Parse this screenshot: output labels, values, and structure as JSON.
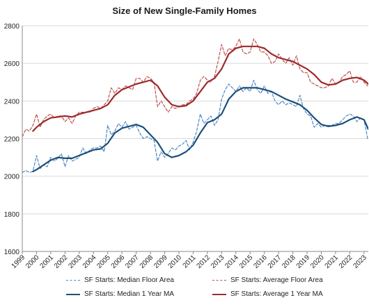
{
  "chart_data": {
    "type": "line",
    "title": "Size of New Single-Family Homes",
    "xlabel": "",
    "ylabel": "",
    "xlim": [
      1999,
      2023.3
    ],
    "ylim": [
      1600,
      2800
    ],
    "grid": "horizontal",
    "legend_position": "bottom",
    "y_ticks": [
      1600,
      1800,
      2000,
      2200,
      2400,
      2600,
      2800
    ],
    "y_tick_labels": [
      "1600",
      "1800",
      "2000",
      "2200",
      "2400",
      "2600",
      "2800"
    ],
    "x_ticks": [
      1999,
      2000,
      2001,
      2002,
      2003,
      2004,
      2005,
      2006,
      2007,
      2008,
      2009,
      2010,
      2011,
      2012,
      2013,
      2014,
      2015,
      2016,
      2017,
      2018,
      2019,
      2020,
      2021,
      2022,
      2023
    ],
    "x_tick_labels": [
      "1999",
      "2000",
      "2001",
      "2002",
      "2003",
      "2004",
      "2005",
      "2006",
      "2007",
      "2008",
      "2009",
      "2010",
      "2011",
      "2012",
      "2013",
      "2014",
      "2015",
      "2016",
      "2017",
      "2018",
      "2019",
      "2020",
      "2021",
      "2022",
      "2023"
    ],
    "series": [
      {
        "name": "SF Starts: Median Floor Area",
        "color": "#4a86c8",
        "style": "dashed",
        "x": [
          1999.0,
          1999.25,
          1999.5,
          1999.75,
          2000.0,
          2000.25,
          2000.5,
          2000.75,
          2001.0,
          2001.25,
          2001.5,
          2001.75,
          2002.0,
          2002.25,
          2002.5,
          2002.75,
          2003.0,
          2003.25,
          2003.5,
          2003.75,
          2004.0,
          2004.25,
          2004.5,
          2004.75,
          2005.0,
          2005.25,
          2005.5,
          2005.75,
          2006.0,
          2006.25,
          2006.5,
          2006.75,
          2007.0,
          2007.25,
          2007.5,
          2007.75,
          2008.0,
          2008.25,
          2008.5,
          2008.75,
          2009.0,
          2009.25,
          2009.5,
          2009.75,
          2010.0,
          2010.25,
          2010.5,
          2010.75,
          2011.0,
          2011.25,
          2011.5,
          2011.75,
          2012.0,
          2012.25,
          2012.5,
          2012.75,
          2013.0,
          2013.25,
          2013.5,
          2013.75,
          2014.0,
          2014.25,
          2014.5,
          2014.75,
          2015.0,
          2015.25,
          2015.5,
          2015.75,
          2016.0,
          2016.25,
          2016.5,
          2016.75,
          2017.0,
          2017.25,
          2017.5,
          2017.75,
          2018.0,
          2018.25,
          2018.5,
          2018.75,
          2019.0,
          2019.25,
          2019.5,
          2019.75,
          2020.0,
          2020.25,
          2020.5,
          2020.75,
          2021.0,
          2021.25,
          2021.5,
          2021.75,
          2022.0,
          2022.25,
          2022.5,
          2022.75,
          2023.0,
          2023.25
        ],
        "values": [
          2020,
          2030,
          2020,
          2025,
          2110,
          2040,
          2060,
          2050,
          2100,
          2080,
          2095,
          2120,
          2050,
          2110,
          2080,
          2090,
          2100,
          2150,
          2120,
          2140,
          2150,
          2150,
          2160,
          2130,
          2270,
          2220,
          2240,
          2280,
          2260,
          2290,
          2250,
          2260,
          2270,
          2230,
          2200,
          2210,
          2200,
          2190,
          2080,
          2130,
          2100,
          2120,
          2150,
          2140,
          2160,
          2170,
          2190,
          2140,
          2180,
          2240,
          2330,
          2280,
          2300,
          2320,
          2270,
          2300,
          2410,
          2460,
          2490,
          2470,
          2450,
          2480,
          2450,
          2470,
          2450,
          2510,
          2460,
          2440,
          2480,
          2440,
          2450,
          2400,
          2380,
          2400,
          2380,
          2390,
          2380,
          2370,
          2430,
          2360,
          2330,
          2320,
          2260,
          2280,
          2260,
          2270,
          2270,
          2270,
          2280,
          2280,
          2300,
          2320,
          2330,
          2320,
          2290,
          2310,
          2300,
          2200
        ]
      },
      {
        "name": "SF Starts: Average Floor Area",
        "color": "#c0504d",
        "style": "dashed",
        "x": [
          1999.0,
          1999.25,
          1999.5,
          1999.75,
          2000.0,
          2000.25,
          2000.5,
          2000.75,
          2001.0,
          2001.25,
          2001.5,
          2001.75,
          2002.0,
          2002.25,
          2002.5,
          2002.75,
          2003.0,
          2003.25,
          2003.5,
          2003.75,
          2004.0,
          2004.25,
          2004.5,
          2004.75,
          2005.0,
          2005.25,
          2005.5,
          2005.75,
          2006.0,
          2006.25,
          2006.5,
          2006.75,
          2007.0,
          2007.25,
          2007.5,
          2007.75,
          2008.0,
          2008.25,
          2008.5,
          2008.75,
          2009.0,
          2009.25,
          2009.5,
          2009.75,
          2010.0,
          2010.25,
          2010.5,
          2010.75,
          2011.0,
          2011.25,
          2011.5,
          2011.75,
          2012.0,
          2012.25,
          2012.5,
          2012.75,
          2013.0,
          2013.25,
          2013.5,
          2013.75,
          2014.0,
          2014.25,
          2014.5,
          2014.75,
          2015.0,
          2015.25,
          2015.5,
          2015.75,
          2016.0,
          2016.25,
          2016.5,
          2016.75,
          2017.0,
          2017.25,
          2017.5,
          2017.75,
          2018.0,
          2018.25,
          2018.5,
          2018.75,
          2019.0,
          2019.25,
          2019.5,
          2019.75,
          2020.0,
          2020.25,
          2020.5,
          2020.75,
          2021.0,
          2021.25,
          2021.5,
          2021.75,
          2022.0,
          2022.25,
          2022.5,
          2022.75,
          2023.0,
          2023.25
        ],
        "values": [
          2210,
          2250,
          2240,
          2270,
          2330,
          2260,
          2300,
          2320,
          2330,
          2310,
          2320,
          2320,
          2290,
          2310,
          2280,
          2320,
          2340,
          2340,
          2340,
          2340,
          2360,
          2370,
          2360,
          2380,
          2400,
          2470,
          2440,
          2470,
          2460,
          2480,
          2470,
          2460,
          2520,
          2520,
          2500,
          2530,
          2520,
          2500,
          2370,
          2400,
          2370,
          2340,
          2370,
          2360,
          2370,
          2380,
          2380,
          2400,
          2410,
          2440,
          2510,
          2530,
          2510,
          2500,
          2530,
          2610,
          2700,
          2640,
          2680,
          2670,
          2690,
          2730,
          2660,
          2650,
          2660,
          2730,
          2700,
          2660,
          2660,
          2640,
          2600,
          2610,
          2650,
          2620,
          2600,
          2630,
          2590,
          2640,
          2570,
          2550,
          2550,
          2500,
          2490,
          2480,
          2470,
          2470,
          2480,
          2520,
          2490,
          2500,
          2530,
          2540,
          2560,
          2500,
          2500,
          2530,
          2500,
          2480
        ]
      },
      {
        "name": "SF Starts: Median 1 Year MA",
        "color": "#1f4e79",
        "style": "solid",
        "x": [
          1999.75,
          2000.0,
          2000.5,
          2001.0,
          2001.5,
          2002.0,
          2002.5,
          2003.0,
          2003.5,
          2004.0,
          2004.5,
          2005.0,
          2005.5,
          2006.0,
          2006.5,
          2007.0,
          2007.5,
          2008.0,
          2008.5,
          2009.0,
          2009.5,
          2010.0,
          2010.5,
          2011.0,
          2011.5,
          2012.0,
          2012.5,
          2013.0,
          2013.5,
          2014.0,
          2014.5,
          2015.0,
          2015.5,
          2016.0,
          2016.5,
          2017.0,
          2017.5,
          2018.0,
          2018.5,
          2019.0,
          2019.5,
          2020.0,
          2020.5,
          2021.0,
          2021.5,
          2022.0,
          2022.5,
          2023.0,
          2023.3
        ],
        "values": [
          2025,
          2035,
          2060,
          2085,
          2100,
          2095,
          2095,
          2110,
          2125,
          2140,
          2145,
          2175,
          2230,
          2255,
          2265,
          2275,
          2260,
          2220,
          2180,
          2120,
          2100,
          2110,
          2130,
          2165,
          2230,
          2285,
          2300,
          2330,
          2410,
          2450,
          2470,
          2470,
          2470,
          2460,
          2450,
          2430,
          2410,
          2395,
          2380,
          2350,
          2310,
          2275,
          2265,
          2270,
          2280,
          2300,
          2315,
          2300,
          2250
        ]
      },
      {
        "name": "SF Starts: Average 1 Year MA",
        "color": "#9e2a2b",
        "style": "solid",
        "x": [
          1999.75,
          2000.0,
          2000.5,
          2001.0,
          2001.5,
          2002.0,
          2002.5,
          2003.0,
          2003.5,
          2004.0,
          2004.5,
          2005.0,
          2005.5,
          2006.0,
          2006.5,
          2007.0,
          2007.5,
          2008.0,
          2008.5,
          2009.0,
          2009.5,
          2010.0,
          2010.5,
          2011.0,
          2011.5,
          2012.0,
          2012.5,
          2013.0,
          2013.5,
          2014.0,
          2014.5,
          2015.0,
          2015.5,
          2016.0,
          2016.5,
          2017.0,
          2017.5,
          2018.0,
          2018.5,
          2019.0,
          2019.5,
          2020.0,
          2020.5,
          2021.0,
          2021.5,
          2022.0,
          2022.5,
          2023.0,
          2023.3
        ],
        "values": [
          2240,
          2260,
          2290,
          2310,
          2315,
          2320,
          2315,
          2330,
          2340,
          2350,
          2360,
          2380,
          2430,
          2460,
          2475,
          2490,
          2500,
          2510,
          2480,
          2420,
          2380,
          2370,
          2375,
          2400,
          2450,
          2500,
          2520,
          2570,
          2650,
          2680,
          2690,
          2690,
          2690,
          2680,
          2650,
          2630,
          2620,
          2610,
          2590,
          2570,
          2540,
          2500,
          2485,
          2490,
          2510,
          2520,
          2525,
          2510,
          2490
        ]
      }
    ]
  }
}
